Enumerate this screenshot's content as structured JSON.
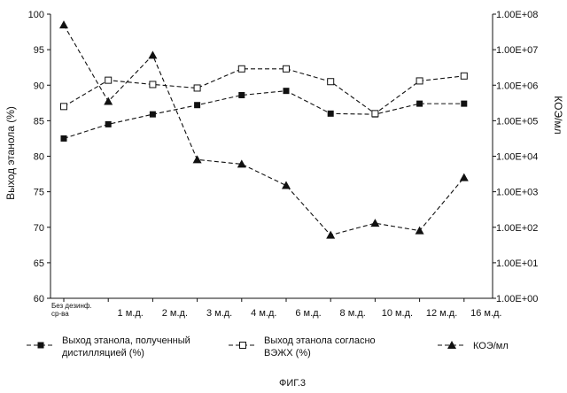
{
  "chart_data": {
    "type": "line",
    "categories": [
      "Без дезинф. ср-ва",
      "1 м.д.",
      "2 м.д.",
      "3 м.д.",
      "4 м.д.",
      "6 м.д.",
      "8 м.д.",
      "10 м.д.",
      "12 м.д.",
      "16 м.д."
    ],
    "ylabel": "Выход этанола (%)",
    "ylim": [
      60,
      100
    ],
    "yticks": [
      60,
      65,
      70,
      75,
      80,
      85,
      90,
      95,
      100
    ],
    "y2label": "КОЭ/мл",
    "y2_scale": "log",
    "y2lim": [
      1,
      100000000
    ],
    "y2ticks": [
      "1.00E+00",
      "1.00E+01",
      "1.00E+02",
      "1.00E+03",
      "1.00E+04",
      "1.00E+05",
      "1.00E+06",
      "1.00E+07",
      "1.00E+08"
    ],
    "series": [
      {
        "name": "Выход этанола, полученный дистилляцией (%)",
        "axis": "left",
        "marker": "filled-square",
        "values": [
          82.5,
          84.5,
          85.9,
          87.2,
          88.6,
          89.2,
          86.0,
          85.9,
          87.4,
          87.4
        ]
      },
      {
        "name": "Выход этанола согласно ВЭЖХ (%)",
        "axis": "left",
        "marker": "open-square",
        "values": [
          87.0,
          90.7,
          90.1,
          89.6,
          92.3,
          92.3,
          90.5,
          86.0,
          90.6,
          91.3
        ]
      },
      {
        "name": "КОЭ/мл",
        "axis": "right",
        "marker": "filled-triangle",
        "values": [
          50000000,
          350000,
          7000000,
          8000,
          6000,
          1500,
          60,
          130,
          80,
          2500
        ]
      }
    ],
    "legend": [
      {
        "line1": "Выход этанола, полученный",
        "line2": "дистилляцией (%)"
      },
      {
        "line1": "Выход этанола согласно",
        "line2": "ВЭЖХ (%)"
      },
      {
        "line1": "КОЭ/мл",
        "line2": ""
      }
    ],
    "first_category_lines": [
      "Без дезинф.",
      "ср-ва"
    ],
    "legend_placement": "bottom",
    "grid": false,
    "caption": "ФИГ.3"
  }
}
